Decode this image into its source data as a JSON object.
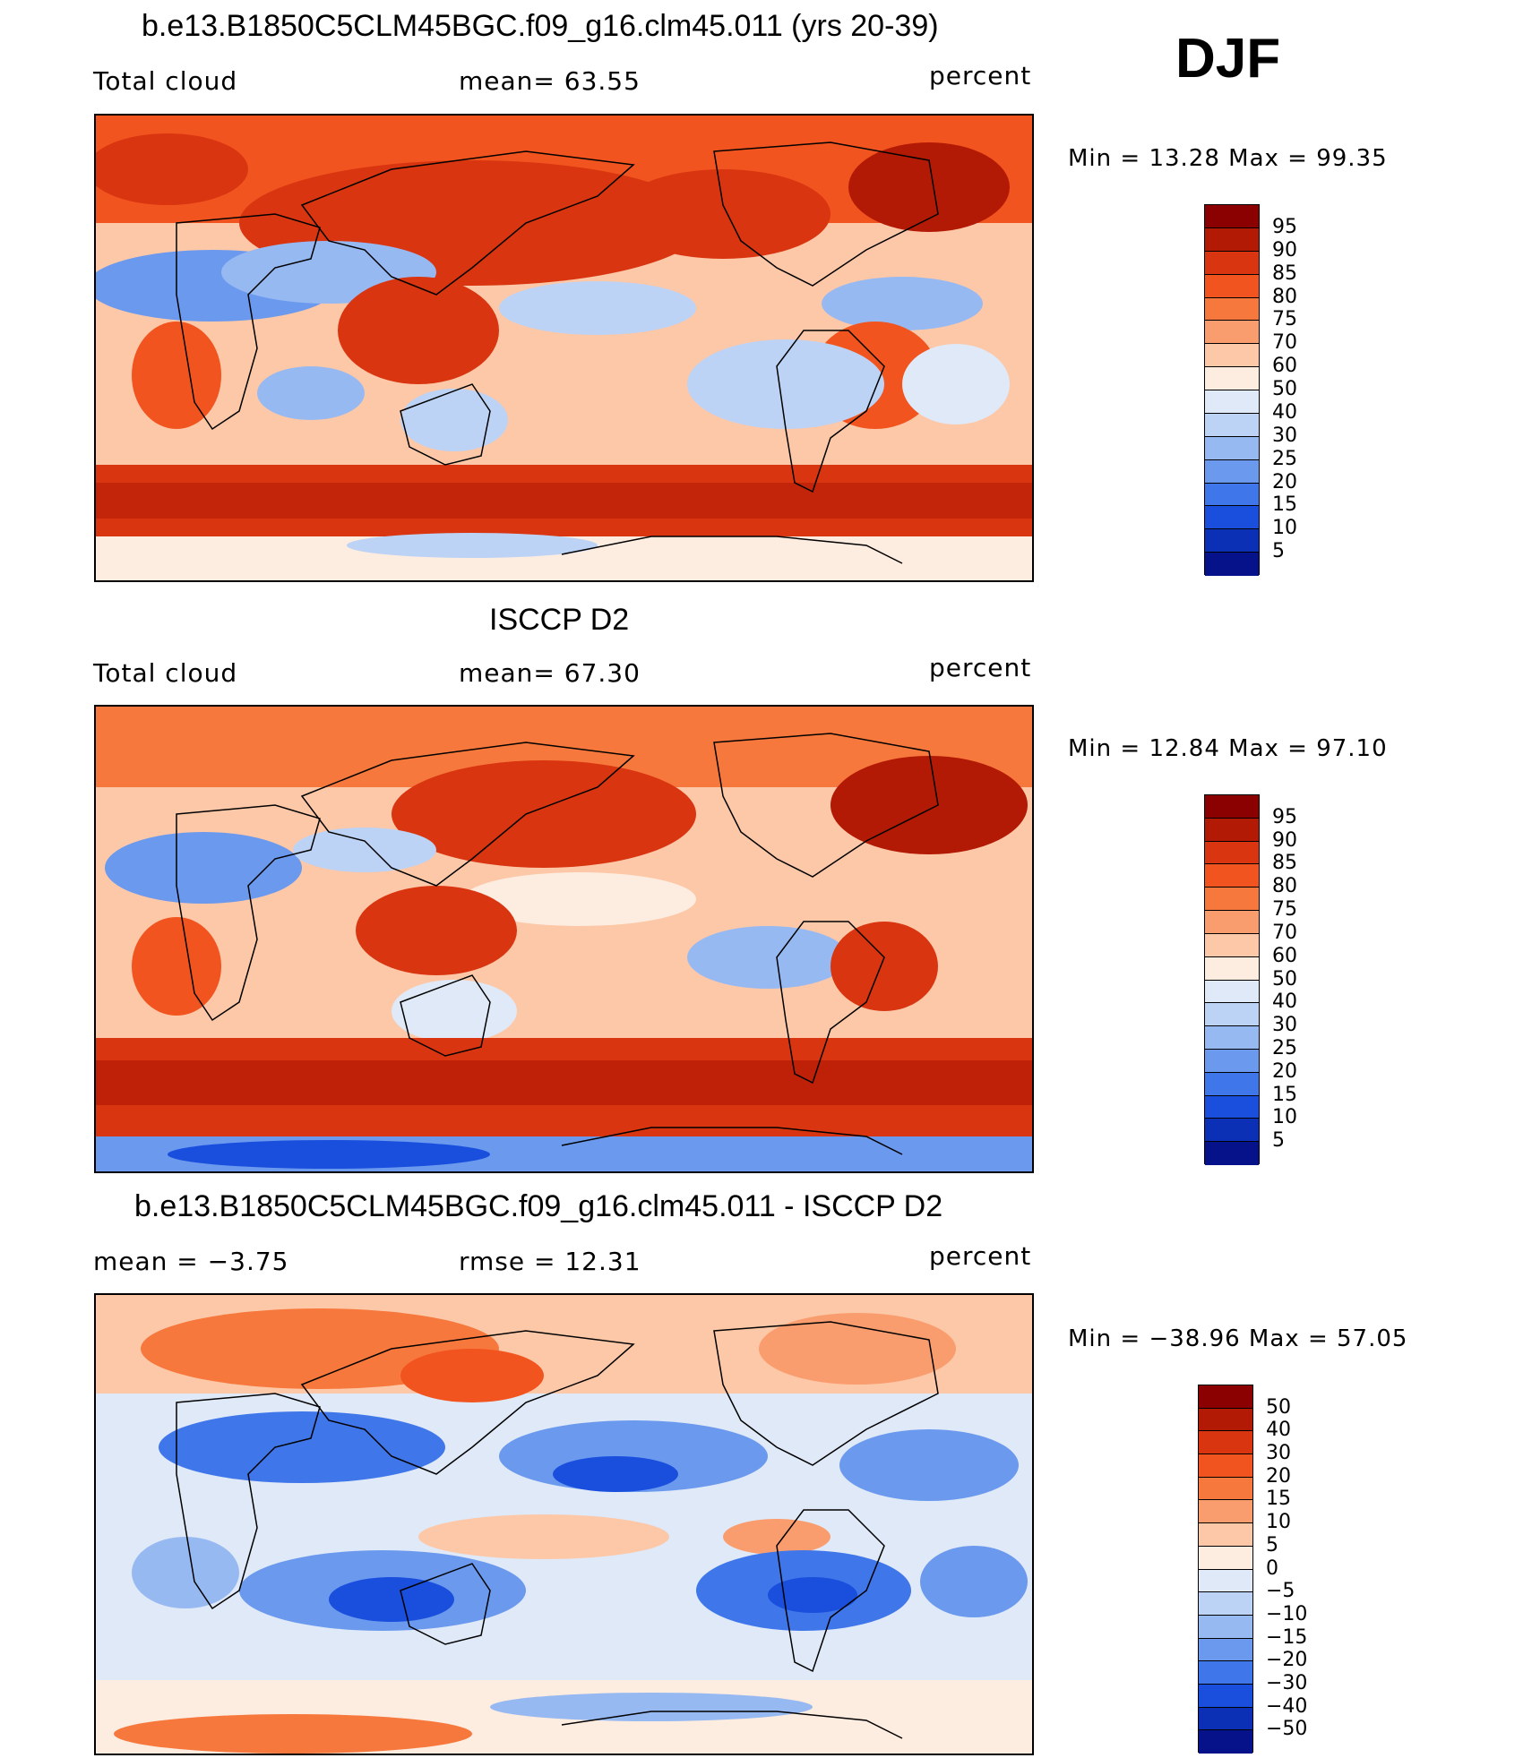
{
  "season": "DJF",
  "panels": [
    {
      "id": "model",
      "title": "b.e13.B1850C5CLM45BGC.f09_g16.clm45.011 (yrs 20-39)",
      "left_label": "Total cloud",
      "center_label": "mean=   63.55",
      "units": "percent",
      "minmax": "Min  =    13.28  Max  =    99.35",
      "colorbar": {
        "colors": [
          "#8b0000",
          "#b31a05",
          "#d93510",
          "#f2541f",
          "#f7783c",
          "#fa9d6e",
          "#fdc8a8",
          "#fdece0",
          "#dfe9f7",
          "#bcd3f5",
          "#97b9f2",
          "#6a99ee",
          "#3f76ea",
          "#1a4fdd",
          "#0b2fb5",
          "#05128a"
        ],
        "labels": [
          "95",
          "90",
          "85",
          "80",
          "75",
          "70",
          "60",
          "50",
          "40",
          "30",
          "25",
          "20",
          "15",
          "10",
          "5"
        ]
      }
    },
    {
      "id": "obs",
      "title": "ISCCP D2",
      "left_label": "Total cloud",
      "center_label": "mean=   67.30",
      "units": "percent",
      "minmax": "Min  =    12.84  Max  =    97.10",
      "colorbar": {
        "colors": [
          "#8b0000",
          "#b31a05",
          "#d93510",
          "#f2541f",
          "#f7783c",
          "#fa9d6e",
          "#fdc8a8",
          "#fdece0",
          "#dfe9f7",
          "#bcd3f5",
          "#97b9f2",
          "#6a99ee",
          "#3f76ea",
          "#1a4fdd",
          "#0b2fb5",
          "#05128a"
        ],
        "labels": [
          "95",
          "90",
          "85",
          "80",
          "75",
          "70",
          "60",
          "50",
          "40",
          "30",
          "25",
          "20",
          "15",
          "10",
          "5"
        ]
      }
    },
    {
      "id": "diff",
      "title": "b.e13.B1850C5CLM45BGC.f09_g16.clm45.011 - ISCCP D2",
      "left_label": "mean  =    −3.75",
      "center_label": "rmse  =    12.31",
      "units": "percent",
      "minmax": "Min  = −38.96  Max  =    57.05",
      "colorbar": {
        "colors": [
          "#8b0000",
          "#b31a05",
          "#d93510",
          "#f2541f",
          "#f7783c",
          "#fa9d6e",
          "#fdc8a8",
          "#fdece0",
          "#dfe9f7",
          "#bcd3f5",
          "#97b9f2",
          "#6a99ee",
          "#3f76ea",
          "#1a4fdd",
          "#0b2fb5",
          "#05128a"
        ],
        "labels": [
          "50",
          "40",
          "30",
          "20",
          "15",
          "10",
          "5",
          "0",
          "−5",
          "−10",
          "−15",
          "−20",
          "−30",
          "−40",
          "−50"
        ]
      }
    }
  ]
}
